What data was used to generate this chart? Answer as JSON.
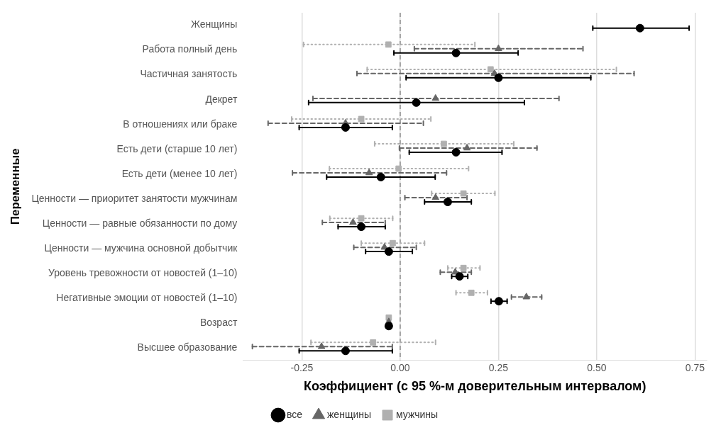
{
  "chart_data": {
    "type": "scatter",
    "orientation": "horizontal",
    "xlabel": "Коэффициент (с 95 %-м доверительным интервалом)",
    "ylabel": "Переменные",
    "categories": [
      "Женщины",
      "Работа полный день",
      "Частичная занятость",
      "Декрет",
      "В отношениях или браке",
      "Есть дети (старше 10 лет)",
      "Есть дети (менее 10 лет)",
      "Ценности — приоритет занятости мужчинам",
      "Ценности — равные обязанности по дому",
      "Ценности — мужчина основной добытчик",
      "Уровень тревожности от новостей (1–10)",
      "Негативные эмоции от новостей (1–10)",
      "Возраст",
      "Высшее образование"
    ],
    "xlim": [
      -0.4,
      0.78
    ],
    "xticks": [
      {
        "value": -0.25,
        "label": "-0.25"
      },
      {
        "value": 0,
        "label": "0.00"
      },
      {
        "value": 0.25,
        "label": "0.25"
      },
      {
        "value": 0.5,
        "label": "0.50"
      },
      {
        "value": 0.75,
        "label": "0.75"
      }
    ],
    "grid": "x",
    "legend": "bottom",
    "ref_lines": [
      {
        "axis": "x",
        "value": 0,
        "color": "#888888",
        "line_style": "dashed"
      }
    ],
    "series": [
      {
        "name": "все",
        "color": "#000000",
        "marker": "circle",
        "line_style": "solid",
        "values": [
          0.61,
          0.142,
          0.25,
          0.041,
          -0.139,
          0.142,
          -0.049,
          0.121,
          -0.099,
          -0.029,
          0.151,
          0.251,
          -0.029,
          -0.139
        ],
        "errors": [
          [
            0.49,
            0.735
          ],
          [
            -0.016,
            0.3
          ],
          [
            0.015,
            0.485
          ],
          [
            -0.233,
            0.316
          ],
          [
            -0.257,
            -0.02
          ],
          [
            0.023,
            0.259
          ],
          [
            -0.187,
            0.089
          ],
          [
            0.062,
            0.181
          ],
          [
            -0.158,
            -0.038
          ],
          [
            -0.088,
            0.031
          ],
          [
            0.131,
            0.172
          ],
          [
            0.231,
            0.272
          ],
          null,
          [
            -0.257,
            -0.02
          ]
        ]
      },
      {
        "name": "женщины",
        "color": "#666666",
        "marker": "triangle",
        "line_style": "dashed",
        "values": [
          null,
          0.25,
          0.24,
          0.09,
          -0.139,
          0.17,
          -0.079,
          0.09,
          -0.12,
          -0.04,
          0.14,
          0.321,
          -0.029,
          -0.2
        ],
        "errors": [
          null,
          [
            0.036,
            0.465
          ],
          [
            -0.11,
            0.595
          ],
          [
            -0.222,
            0.404
          ],
          [
            -0.336,
            0.059
          ],
          [
            -0.002,
            0.348
          ],
          [
            -0.274,
            0.118
          ],
          [
            0.012,
            0.17
          ],
          [
            -0.198,
            -0.038
          ],
          [
            -0.118,
            0.041
          ],
          [
            0.102,
            0.181
          ],
          [
            0.283,
            0.36
          ],
          null,
          [
            -0.376,
            -0.02
          ]
        ]
      },
      {
        "name": "мужчины",
        "color": "#b0b0b0",
        "marker": "square",
        "line_style": "dotted",
        "values": [
          null,
          -0.03,
          0.23,
          null,
          -0.099,
          0.111,
          -0.004,
          0.161,
          -0.099,
          -0.019,
          0.161,
          0.181,
          -0.029,
          -0.069
        ],
        "errors": [
          null,
          [
            -0.246,
            0.19
          ],
          [
            -0.084,
            0.55
          ],
          null,
          [
            -0.276,
            0.078
          ],
          [
            -0.065,
            0.289
          ],
          [
            -0.18,
            0.174
          ],
          [
            0.08,
            0.241
          ],
          [
            -0.179,
            -0.019
          ],
          [
            -0.099,
            0.062
          ],
          [
            0.121,
            0.203
          ],
          [
            0.142,
            0.222
          ],
          null,
          [
            -0.227,
            0.09
          ]
        ]
      }
    ]
  }
}
